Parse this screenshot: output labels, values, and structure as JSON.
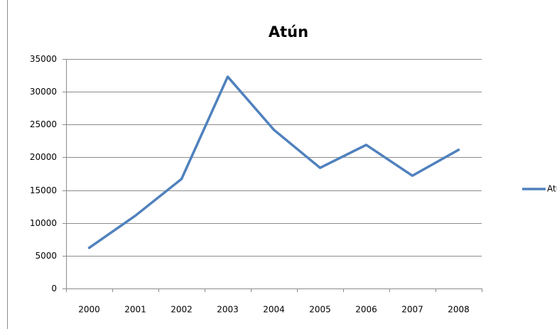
{
  "chart_data": {
    "type": "line",
    "title": "Atún",
    "categories": [
      "2000",
      "2001",
      "2002",
      "2003",
      "2004",
      "2005",
      "2006",
      "2007",
      "2008"
    ],
    "series": [
      {
        "name": "Atún",
        "color": "#4f81bd",
        "values": [
          6200,
          11100,
          16700,
          32300,
          24200,
          18400,
          21900,
          17200,
          21150
        ]
      }
    ],
    "ylim": [
      0,
      35000
    ],
    "yticks": [
      0,
      5000,
      10000,
      15000,
      20000,
      25000,
      30000,
      35000
    ],
    "grid": true,
    "legend": "right"
  }
}
